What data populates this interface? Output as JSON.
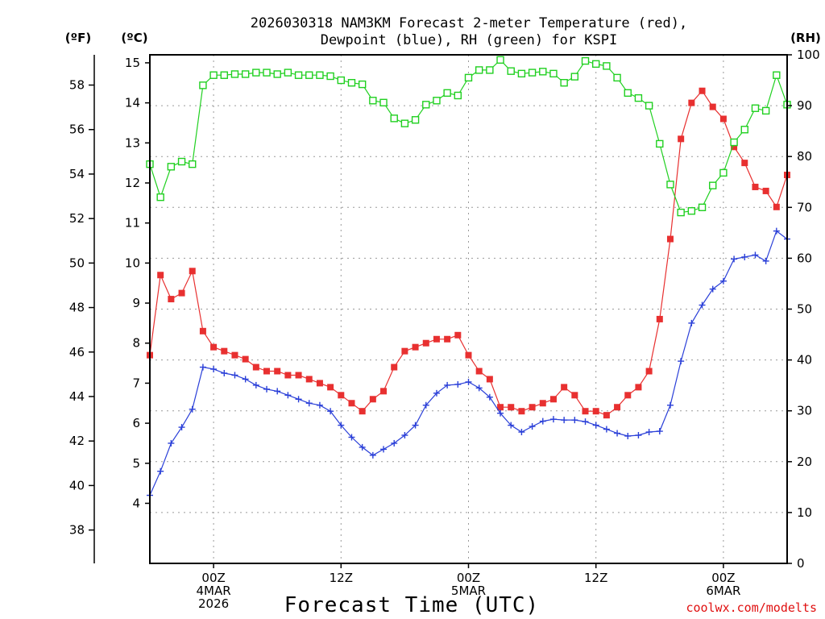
{
  "chart_data": {
    "type": "line",
    "title_line1": "2026030318 NAM3KM Forecast 2-meter Temperature (red),",
    "title_line2": "Dewpoint (blue), RH (green) for KSPI",
    "xlabel": "Forecast Time (UTC)",
    "credit": "coolwx.com/modelts",
    "units": {
      "fahrenheit": "(ºF)",
      "celsius": "(ºC)",
      "rh": "(RH)"
    },
    "x_hours_range": [
      0,
      60
    ],
    "celsius_axis": {
      "ylim": [
        2.5,
        15.2
      ],
      "ticks": [
        4,
        5,
        6,
        7,
        8,
        9,
        10,
        11,
        12,
        13,
        14,
        15
      ]
    },
    "fahrenheit_axis": {
      "ylim": [
        36.5,
        59.36
      ],
      "ticks": [
        38,
        40,
        42,
        44,
        46,
        48,
        50,
        52,
        54,
        56,
        58
      ]
    },
    "rh_axis": {
      "ylim": [
        0,
        100
      ],
      "ticks": [
        0,
        10,
        20,
        30,
        40,
        50,
        60,
        70,
        80,
        90,
        100
      ]
    },
    "x_ticks": [
      {
        "hour": 6,
        "lines": [
          "00Z",
          "4MAR",
          "2026"
        ]
      },
      {
        "hour": 18,
        "lines": [
          "12Z"
        ]
      },
      {
        "hour": 30,
        "lines": [
          "00Z",
          "5MAR"
        ]
      },
      {
        "hour": 42,
        "lines": [
          "12Z"
        ]
      },
      {
        "hour": 54,
        "lines": [
          "00Z",
          "6MAR"
        ]
      }
    ],
    "series": [
      {
        "name": "Temperature",
        "color": "#e83030",
        "marker": "filled-square",
        "axis": "celsius",
        "x": [
          0,
          1,
          2,
          3,
          4,
          5,
          6,
          7,
          8,
          9,
          10,
          11,
          12,
          13,
          14,
          15,
          16,
          17,
          18,
          19,
          20,
          21,
          22,
          23,
          24,
          25,
          26,
          27,
          28,
          29,
          30,
          31,
          32,
          33,
          34,
          35,
          36,
          37,
          38,
          39,
          40,
          41,
          42,
          43,
          44,
          45,
          46,
          47,
          48,
          49,
          50,
          51,
          52,
          53,
          54,
          55,
          56,
          57,
          58,
          59,
          60
        ],
        "values": [
          7.7,
          9.7,
          9.1,
          9.25,
          9.8,
          8.3,
          7.9,
          7.8,
          7.7,
          7.6,
          7.4,
          7.3,
          7.3,
          7.2,
          7.2,
          7.1,
          7.0,
          6.9,
          6.7,
          6.5,
          6.3,
          6.6,
          6.8,
          7.4,
          7.8,
          7.9,
          8.0,
          8.1,
          8.1,
          8.2,
          7.7,
          7.3,
          7.1,
          6.4,
          6.4,
          6.3,
          6.4,
          6.5,
          6.6,
          6.9,
          6.7,
          6.3,
          6.3,
          6.2,
          6.4,
          6.7,
          6.9,
          7.3,
          8.6,
          10.6,
          13.1,
          14.0,
          14.3,
          13.9,
          13.6,
          12.9,
          12.5,
          11.9,
          11.8,
          11.4,
          12.2
        ]
      },
      {
        "name": "Dewpoint",
        "color": "#2a3fd8",
        "marker": "plus",
        "axis": "celsius",
        "x": [
          0,
          1,
          2,
          3,
          4,
          5,
          6,
          7,
          8,
          9,
          10,
          11,
          12,
          13,
          14,
          15,
          16,
          17,
          18,
          19,
          20,
          21,
          22,
          23,
          24,
          25,
          26,
          27,
          28,
          29,
          30,
          31,
          32,
          33,
          34,
          35,
          36,
          37,
          38,
          39,
          40,
          41,
          42,
          43,
          44,
          45,
          46,
          47,
          48,
          49,
          50,
          51,
          52,
          53,
          54,
          55,
          56,
          57,
          58,
          59,
          60
        ],
        "values": [
          4.2,
          4.8,
          5.5,
          5.9,
          6.35,
          7.4,
          7.35,
          7.25,
          7.2,
          7.1,
          6.95,
          6.85,
          6.8,
          6.7,
          6.6,
          6.5,
          6.45,
          6.3,
          5.95,
          5.65,
          5.4,
          5.2,
          5.35,
          5.5,
          5.7,
          5.95,
          6.45,
          6.75,
          6.95,
          6.97,
          7.03,
          6.88,
          6.65,
          6.25,
          5.95,
          5.78,
          5.92,
          6.05,
          6.1,
          6.08,
          6.08,
          6.04,
          5.95,
          5.85,
          5.75,
          5.68,
          5.7,
          5.78,
          5.8,
          6.45,
          7.55,
          8.5,
          8.95,
          9.35,
          9.55,
          10.1,
          10.15,
          10.2,
          10.05,
          10.8,
          10.6
        ]
      },
      {
        "name": "RH",
        "color": "#20d020",
        "marker": "open-square",
        "axis": "rh",
        "x": [
          0,
          1,
          2,
          3,
          4,
          5,
          6,
          7,
          8,
          9,
          10,
          11,
          12,
          13,
          14,
          15,
          16,
          17,
          18,
          19,
          20,
          21,
          22,
          23,
          24,
          25,
          26,
          27,
          28,
          29,
          30,
          31,
          32,
          33,
          34,
          35,
          36,
          37,
          38,
          39,
          40,
          41,
          42,
          43,
          44,
          45,
          46,
          47,
          48,
          49,
          50,
          51,
          52,
          53,
          54,
          55,
          56,
          57,
          58,
          59,
          60
        ],
        "values": [
          78.5,
          72,
          78,
          79,
          78.5,
          94,
          96,
          96,
          96.2,
          96.2,
          96.5,
          96.5,
          96.2,
          96.5,
          96,
          96,
          96,
          95.8,
          95,
          94.5,
          94.2,
          91,
          90.6,
          87.5,
          86.5,
          87.2,
          90.2,
          91,
          92.5,
          92,
          95.5,
          97,
          97,
          99,
          96.8,
          96.3,
          96.5,
          96.7,
          96.3,
          94.5,
          95.7,
          98.8,
          98.2,
          97.8,
          95.5,
          92.5,
          91.5,
          90,
          82.5,
          74.5,
          69,
          69.3,
          70,
          74.3,
          76.8,
          82.8,
          85.3,
          89.5,
          89,
          96,
          90.2
        ]
      }
    ]
  }
}
